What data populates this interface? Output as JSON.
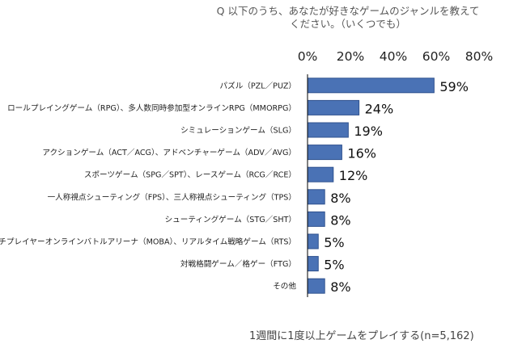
{
  "title": {
    "line1": "Q 以下のうち、あなたが好きなゲームのジャンルを教えて",
    "line2": "ください。（いくつでも）"
  },
  "footnote": "1週間に1度以上ゲームをプレイする(n=5,162)",
  "colors": {
    "bar": "#4a72b5",
    "bar_stroke": "#2f528f",
    "axis": "#000000"
  },
  "chart_data": {
    "type": "bar",
    "orientation": "horizontal",
    "categories": [
      "パズル（PZL／PUZ）",
      "ロールプレイングゲーム（RPG）、多人数同時参加型オンラインRPG（MMORPG）",
      "シミュレーションゲーム（SLG）",
      "アクションゲーム（ACT／ACG）、アドベンチャーゲーム（ADV／AVG）",
      "スポーツゲーム（SPG／SPT）、レースゲーム（RCG／RCE）",
      "一人称視点シューティング（FPS）、三人称視点シューティング（TPS）",
      "シューティングゲーム（STG／SHT）",
      "マルチプレイヤーオンラインバトルアリーナ（MOBA）、リアルタイム戦略ゲーム（RTS）",
      "対戦格闘ゲーム／格ゲー（FTG）",
      "その他"
    ],
    "values": [
      59,
      24,
      19,
      16,
      12,
      8,
      8,
      5,
      5,
      8
    ],
    "data_labels": [
      "59%",
      "24%",
      "19%",
      "16%",
      "12%",
      "8%",
      "8%",
      "5%",
      "5%",
      "8%"
    ],
    "xlim": [
      0,
      80
    ],
    "x_ticks": [
      "0%",
      "20%",
      "40%",
      "60%",
      "80%"
    ],
    "x_tick_values": [
      0,
      20,
      40,
      60,
      80
    ],
    "x_axis_position": "top",
    "grid": false,
    "legend": "none"
  }
}
